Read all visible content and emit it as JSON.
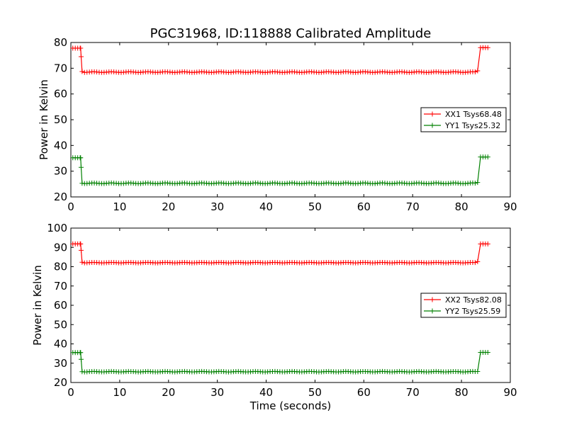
{
  "figure": {
    "title": "PGC31968, ID:118888 Calibrated Amplitude",
    "xlabel": "Time (seconds)",
    "series_colors": {
      "xx": "#ff0000",
      "yy": "#008000"
    }
  },
  "chart_data": [
    {
      "type": "line",
      "title": "PGC31968, ID:118888 Calibrated Amplitude",
      "xlabel": "",
      "ylabel": "Power in Kelvin",
      "xlim": [
        0,
        90
      ],
      "ylim": [
        20,
        80
      ],
      "xticks": [
        "0",
        "10",
        "20",
        "30",
        "40",
        "50",
        "60",
        "70",
        "80",
        "90"
      ],
      "yticks": [
        "20",
        "30",
        "40",
        "50",
        "60",
        "70",
        "80"
      ],
      "legend_position": "right",
      "series": [
        {
          "name": "XX1 Tsys68.48",
          "color": "#ff0000",
          "segments": [
            {
              "x_start": 0.4,
              "x_end": 1.9,
              "value": 77.8
            },
            {
              "x_start": 2.3,
              "x_end": 83.2,
              "value": 68.5
            },
            {
              "x_start": 83.9,
              "x_end": 85.4,
              "value": 78.0
            }
          ],
          "transitions": [
            [
              2.0,
              77.8
            ],
            [
              2.1,
              74.5
            ],
            [
              2.3,
              68.7
            ],
            [
              83.3,
              69.0
            ],
            [
              83.9,
              78.0
            ]
          ]
        },
        {
          "name": "YY1 Tsys25.32",
          "color": "#008000",
          "segments": [
            {
              "x_start": 0.4,
              "x_end": 1.9,
              "value": 35.2
            },
            {
              "x_start": 2.3,
              "x_end": 83.2,
              "value": 25.3
            },
            {
              "x_start": 83.9,
              "x_end": 85.4,
              "value": 35.5
            }
          ],
          "transitions": [
            [
              2.0,
              35.2
            ],
            [
              2.1,
              31.5
            ],
            [
              2.3,
              25.3
            ],
            [
              83.3,
              25.6
            ],
            [
              83.9,
              35.5
            ]
          ]
        }
      ]
    },
    {
      "type": "line",
      "title": "",
      "xlabel": "Time (seconds)",
      "ylabel": "Power in Kelvin",
      "xlim": [
        0,
        90
      ],
      "ylim": [
        20,
        100
      ],
      "xticks": [
        "0",
        "10",
        "20",
        "30",
        "40",
        "50",
        "60",
        "70",
        "80",
        "90"
      ],
      "yticks": [
        "20",
        "30",
        "40",
        "50",
        "60",
        "70",
        "80",
        "90",
        "100"
      ],
      "legend_position": "right",
      "series": [
        {
          "name": "XX2 Tsys82.08",
          "color": "#ff0000",
          "segments": [
            {
              "x_start": 0.4,
              "x_end": 1.9,
              "value": 91.8
            },
            {
              "x_start": 2.3,
              "x_end": 83.2,
              "value": 82.1
            },
            {
              "x_start": 83.9,
              "x_end": 85.4,
              "value": 91.8
            }
          ],
          "transitions": [
            [
              2.0,
              91.8
            ],
            [
              2.1,
              88.5
            ],
            [
              2.3,
              82.3
            ],
            [
              83.3,
              82.6
            ],
            [
              83.9,
              91.8
            ]
          ]
        },
        {
          "name": "YY2 Tsys25.59",
          "color": "#008000",
          "segments": [
            {
              "x_start": 0.4,
              "x_end": 1.9,
              "value": 35.5
            },
            {
              "x_start": 2.3,
              "x_end": 83.2,
              "value": 25.6
            },
            {
              "x_start": 83.9,
              "x_end": 85.4,
              "value": 35.6
            }
          ],
          "transitions": [
            [
              2.0,
              35.5
            ],
            [
              2.1,
              32.0
            ],
            [
              2.3,
              25.6
            ],
            [
              83.3,
              25.7
            ],
            [
              83.9,
              35.6
            ]
          ]
        }
      ]
    }
  ]
}
